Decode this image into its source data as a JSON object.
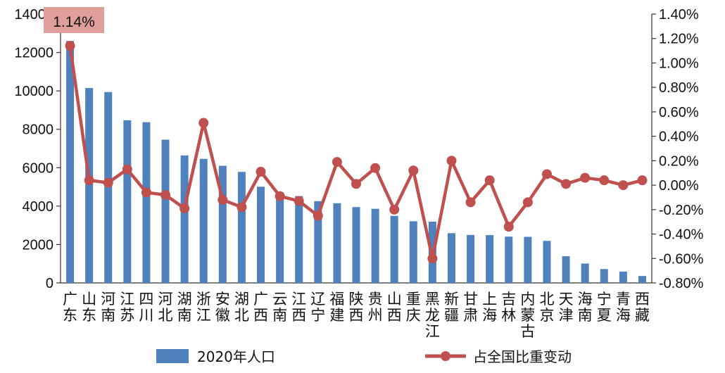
{
  "chart_data": {
    "type": "bar+line",
    "categories": [
      "广东",
      "山东",
      "河南",
      "江苏",
      "四川",
      "河北",
      "湖南",
      "浙江",
      "安徽",
      "湖北",
      "广西",
      "云南",
      "江西",
      "辽宁",
      "福建",
      "陕西",
      "贵州",
      "山西",
      "重庆",
      "黑龙江",
      "新疆",
      "甘肃",
      "上海",
      "吉林",
      "内蒙古",
      "北京",
      "天津",
      "海南",
      "宁夏",
      "青海",
      "西藏"
    ],
    "series": [
      {
        "name": "2020年人口",
        "type": "bar",
        "axis": "left",
        "color": "#4f81bd",
        "values": [
          12600,
          10150,
          9940,
          8470,
          8370,
          7460,
          6640,
          6460,
          6100,
          5780,
          5010,
          4720,
          4520,
          4260,
          4150,
          3950,
          3860,
          3490,
          3210,
          3190,
          2590,
          2500,
          2490,
          2410,
          2400,
          2190,
          1390,
          1010,
          720,
          590,
          360
        ]
      },
      {
        "name": "占全国比重变动",
        "type": "line",
        "axis": "right",
        "color": "#c0504d",
        "values": [
          1.14,
          0.04,
          0.02,
          0.13,
          -0.06,
          -0.08,
          -0.19,
          0.51,
          -0.12,
          -0.18,
          0.11,
          -0.09,
          -0.13,
          -0.25,
          0.19,
          0.01,
          0.14,
          -0.2,
          0.12,
          -0.6,
          0.2,
          -0.14,
          0.04,
          -0.34,
          -0.14,
          0.09,
          0.01,
          0.06,
          0.04,
          0.0,
          0.04
        ]
      }
    ],
    "y_left": {
      "min": 0,
      "max": 14000,
      "step": 2000,
      "ticks": [
        "0",
        "2000",
        "4000",
        "6000",
        "8000",
        "10000",
        "12000",
        "14000"
      ]
    },
    "y_right": {
      "min": -0.8,
      "max": 1.4,
      "step": 0.2,
      "ticks": [
        "-0.80%",
        "-0.60%",
        "-0.40%",
        "-0.20%",
        "0.00%",
        "0.20%",
        "0.40%",
        "0.60%",
        "0.80%",
        "1.00%",
        "1.20%",
        "1.40%"
      ]
    },
    "callout": {
      "text": "1.14%",
      "color": "#e19f9c"
    },
    "legend": {
      "placement": "bottom"
    }
  }
}
